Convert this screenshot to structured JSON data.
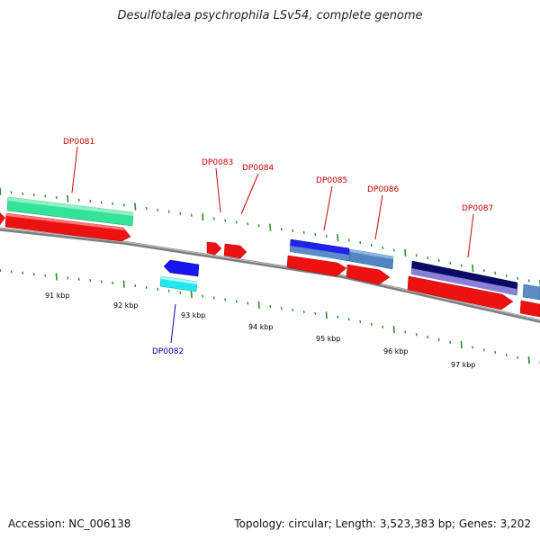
{
  "title": "Desulfotalea psychrophila LSv54, complete genome",
  "footer": {
    "accession": "Accession: NC_006138",
    "topology": "Topology: circular; Length: 3,523,383 bp; Genes: 3,202"
  },
  "colors": {
    "backbone": "#8a8a8a",
    "tick": "#2e8b2e",
    "forward_label": "#cc0000",
    "reverse_label": "#0000aa",
    "ruler_label": "#000000"
  },
  "ruler": [
    {
      "label": "91 kbp"
    },
    {
      "label": "92 kbp"
    },
    {
      "label": "93 kbp"
    },
    {
      "label": "94 kbp"
    },
    {
      "label": "95 kbp"
    },
    {
      "label": "96 kbp"
    },
    {
      "label": "97 kbp"
    }
  ],
  "genes": [
    {
      "id": "DP0081",
      "strand": "forward"
    },
    {
      "id": "DP0082",
      "strand": "reverse"
    },
    {
      "id": "DP0083",
      "strand": "forward"
    },
    {
      "id": "DP0084",
      "strand": "forward"
    },
    {
      "id": "DP0085",
      "strand": "forward"
    },
    {
      "id": "DP0086",
      "strand": "forward"
    },
    {
      "id": "DP0087",
      "strand": "forward"
    }
  ]
}
